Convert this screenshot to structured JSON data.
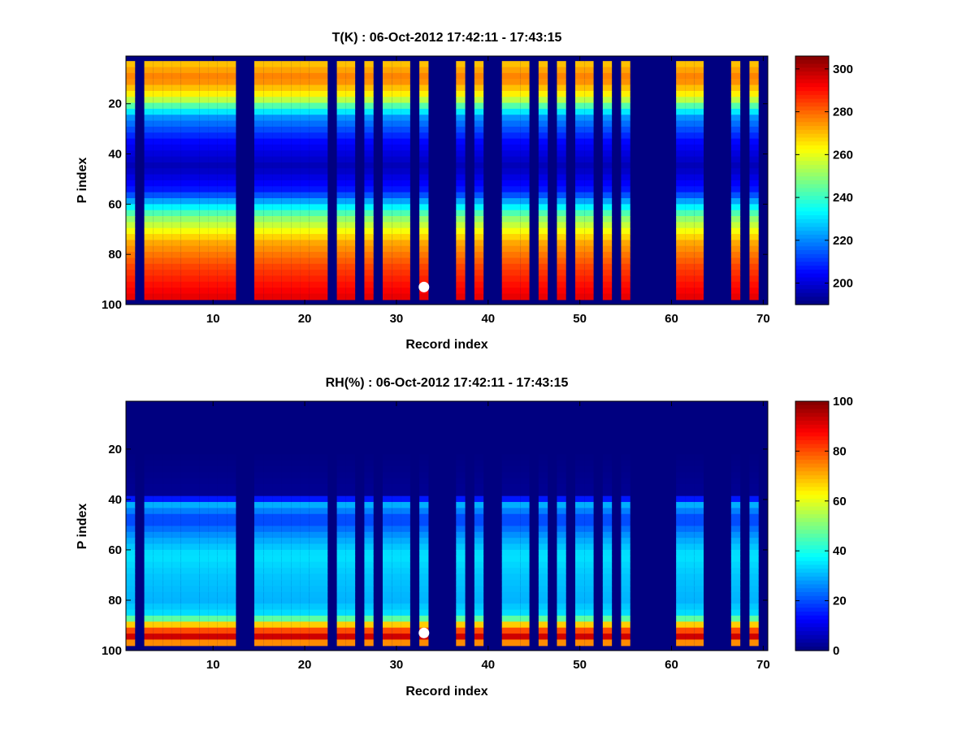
{
  "chart_data": [
    {
      "type": "heatmap",
      "title": "T(K) : 06-Oct-2012 17:42:11 - 17:43:15",
      "xlabel": "Record index",
      "ylabel": "P index",
      "xlim": [
        0.5,
        70.5
      ],
      "ylim": [
        1,
        100
      ],
      "y_direction": "reverse",
      "xticks": [
        10,
        20,
        30,
        40,
        50,
        60,
        70
      ],
      "yticks": [
        20,
        40,
        60,
        80,
        100
      ],
      "colormap": "jet",
      "colorbar": {
        "range": [
          190,
          306
        ],
        "ticks": [
          200,
          220,
          240,
          260,
          280,
          300
        ]
      },
      "background_value": 190,
      "records_with_data": [
        1,
        3,
        4,
        5,
        6,
        7,
        8,
        9,
        10,
        11,
        12,
        15,
        16,
        17,
        18,
        19,
        20,
        21,
        22,
        24,
        25,
        27,
        29,
        30,
        31,
        33,
        37,
        39,
        42,
        43,
        44,
        46,
        48,
        50,
        51,
        53,
        55,
        61,
        62,
        63,
        67,
        69
      ],
      "profile_p_index": [
        3,
        10,
        17,
        25,
        35,
        45,
        55,
        65,
        75,
        85,
        92,
        98
      ],
      "profile_value": [
        268,
        278,
        262,
        222,
        205,
        196,
        208,
        248,
        272,
        284,
        290,
        295
      ],
      "marker": {
        "record": 33,
        "p_index": 93
      }
    },
    {
      "type": "heatmap",
      "title": "RH(%) : 06-Oct-2012 17:42:11 - 17:43:15",
      "xlabel": "Record index",
      "ylabel": "P index",
      "xlim": [
        0.5,
        70.5
      ],
      "ylim": [
        1,
        100
      ],
      "y_direction": "reverse",
      "xticks": [
        10,
        20,
        30,
        40,
        50,
        60,
        70
      ],
      "yticks": [
        20,
        40,
        60,
        80,
        100
      ],
      "colormap": "jet",
      "colorbar": {
        "range": [
          0,
          100
        ],
        "ticks": [
          0,
          20,
          40,
          60,
          80,
          100
        ]
      },
      "background_value": 0,
      "records_with_data": [
        1,
        3,
        4,
        5,
        6,
        7,
        8,
        9,
        10,
        11,
        12,
        15,
        16,
        17,
        18,
        19,
        20,
        21,
        22,
        24,
        25,
        27,
        29,
        30,
        31,
        33,
        37,
        39,
        42,
        43,
        44,
        46,
        48,
        50,
        51,
        53,
        55,
        61,
        62,
        63,
        67,
        69
      ],
      "profile_p_index": [
        3,
        20,
        38,
        42,
        48,
        55,
        62,
        70,
        80,
        86,
        90,
        95,
        98
      ],
      "profile_value": [
        0,
        0,
        2,
        30,
        18,
        28,
        35,
        32,
        30,
        35,
        70,
        95,
        60
      ],
      "marker": {
        "record": 33,
        "p_index": 93
      }
    }
  ]
}
